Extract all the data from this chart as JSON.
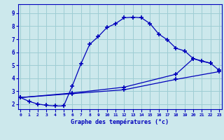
{
  "xlabel": "Graphe des températures (°c)",
  "bg_color": "#cce8ec",
  "grid_color": "#9ecdd4",
  "line_color": "#0000bb",
  "x_ticks": [
    0,
    1,
    2,
    3,
    4,
    5,
    6,
    7,
    8,
    9,
    10,
    11,
    12,
    13,
    14,
    15,
    16,
    17,
    18,
    19,
    20,
    21,
    22,
    23
  ],
  "y_ticks": [
    2,
    3,
    4,
    5,
    6,
    7,
    8,
    9
  ],
  "xlim": [
    -0.3,
    23.3
  ],
  "ylim": [
    1.6,
    9.7
  ],
  "series1_x": [
    0,
    1,
    2,
    3,
    4,
    5,
    6,
    7,
    8,
    9,
    10,
    11,
    12,
    13,
    14,
    15,
    16,
    17,
    18,
    19,
    20,
    21,
    22
  ],
  "series1_y": [
    2.5,
    2.2,
    2.0,
    1.9,
    1.85,
    1.85,
    3.4,
    5.1,
    6.6,
    7.2,
    7.9,
    8.2,
    8.65,
    8.7,
    8.65,
    8.2,
    7.4,
    6.95,
    6.3,
    6.1,
    5.5,
    5.3,
    5.15
  ],
  "series2_x": [
    0,
    6,
    12,
    18,
    20,
    22,
    23
  ],
  "series2_y": [
    2.5,
    2.85,
    3.3,
    4.3,
    5.5,
    5.15,
    4.6
  ],
  "series3_x": [
    0,
    6,
    12,
    18,
    23
  ],
  "series3_y": [
    2.5,
    2.8,
    3.1,
    3.9,
    4.5
  ]
}
